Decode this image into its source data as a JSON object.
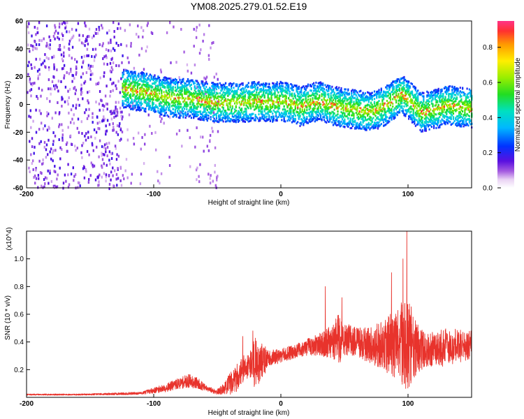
{
  "title": "YM08.2025.279.01.52.E19",
  "chart_data": [
    {
      "type": "heatmap",
      "xlabel": "Height of straight line (km)",
      "ylabel": "Frequency (Hz)",
      "xlim": [
        -200,
        150
      ],
      "ylim": [
        -60,
        60
      ],
      "x_ticks": [
        -200,
        -100,
        0,
        100
      ],
      "y_ticks": [
        -60,
        -40,
        -20,
        0,
        20,
        40,
        60
      ],
      "colorbar": {
        "label": "Normalized spectral amplitude",
        "range": [
          0,
          0.95
        ],
        "ticks": [
          0.0,
          0.2,
          0.4,
          0.6,
          0.8
        ]
      },
      "ridge": {
        "x": [
          -125,
          -110,
          -100,
          -90,
          -80,
          -70,
          -60,
          -50,
          -40,
          -30,
          -20,
          -10,
          0,
          10,
          15,
          20,
          30,
          40,
          50,
          60,
          70,
          80,
          90,
          95,
          100,
          110,
          120,
          130,
          140,
          150
        ],
        "y": [
          12,
          10,
          8,
          6,
          5,
          5,
          3,
          2,
          2,
          2,
          3,
          2,
          3,
          1,
          -1,
          1,
          3,
          0,
          -2,
          -3,
          -5,
          -1,
          5,
          8,
          4,
          -5,
          -3,
          0,
          -1,
          -2
        ]
      },
      "noise_region_x": [
        -200,
        -50
      ]
    },
    {
      "type": "line",
      "title_multiplier": "(x10^4)",
      "xlabel": "Height of straight line (km)",
      "ylabel": "SNR (10 * v/v)",
      "xlim": [
        -200,
        150
      ],
      "ylim": [
        0,
        1.2
      ],
      "x_ticks": [
        -200,
        -100,
        0,
        100
      ],
      "y_ticks": [
        0.2,
        0.4,
        0.6,
        0.8,
        1.0
      ],
      "series": [
        {
          "color": "#e8332c",
          "envelope": {
            "x": [
              -200,
              -160,
              -130,
              -110,
              -100,
              -90,
              -80,
              -72,
              -65,
              -58,
              -50,
              -45,
              -40,
              -35,
              -30,
              -25,
              -20,
              -15,
              -10,
              0,
              10,
              20,
              30,
              40,
              45,
              50,
              60,
              70,
              80,
              90,
              95,
              100,
              105,
              110,
              120,
              130,
              140,
              150
            ],
            "base": [
              0.02,
              0.02,
              0.025,
              0.03,
              0.05,
              0.07,
              0.1,
              0.12,
              0.1,
              0.06,
              0.04,
              0.06,
              0.1,
              0.14,
              0.2,
              0.24,
              0.26,
              0.26,
              0.28,
              0.3,
              0.33,
              0.36,
              0.38,
              0.4,
              0.42,
              0.42,
              0.4,
              0.38,
              0.38,
              0.38,
              0.4,
              0.38,
              0.36,
              0.34,
              0.35,
              0.36,
              0.37,
              0.38
            ],
            "amp": [
              0.005,
              0.005,
              0.008,
              0.01,
              0.02,
              0.03,
              0.04,
              0.05,
              0.04,
              0.02,
              0.02,
              0.04,
              0.08,
              0.1,
              0.1,
              0.09,
              0.2,
              0.14,
              0.06,
              0.05,
              0.05,
              0.06,
              0.08,
              0.12,
              0.2,
              0.12,
              0.1,
              0.14,
              0.18,
              0.25,
              0.3,
              0.35,
              0.22,
              0.15,
              0.12,
              0.14,
              0.12,
              0.1
            ]
          },
          "peaks": [
            {
              "x": 99,
              "y": 1.2
            },
            {
              "x": 96,
              "y": 1.0
            },
            {
              "x": 87,
              "y": 0.9
            },
            {
              "x": 35,
              "y": 0.8
            },
            {
              "x": 48,
              "y": 0.72
            },
            {
              "x": -22,
              "y": 0.48
            },
            {
              "x": -30,
              "y": 0.44
            }
          ]
        }
      ]
    }
  ]
}
